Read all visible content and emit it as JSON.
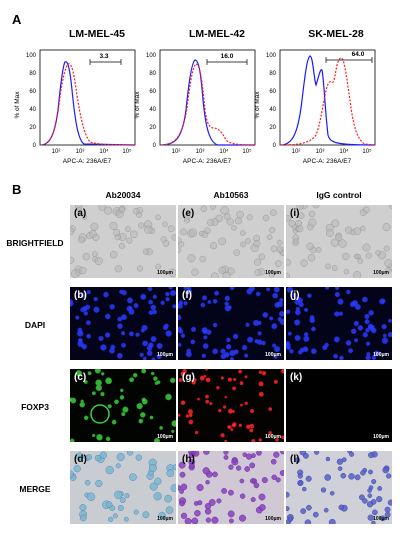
{
  "panel_a": {
    "letter": "A",
    "plots": [
      {
        "title": "LM-MEL-45",
        "gate_value": "3.3"
      },
      {
        "title": "LM-MEL-42",
        "gate_value": "16.0"
      },
      {
        "title": "SK-MEL-28",
        "gate_value": "64.0"
      }
    ],
    "y_label": "% of Max",
    "x_label": "APC-A: 236A/E7",
    "y_ticks": [
      "0",
      "20",
      "40",
      "60",
      "80",
      "100"
    ],
    "x_ticks": [
      "10²",
      "10³",
      "10⁴",
      "10⁵"
    ],
    "series_colors": {
      "blue": "#1a1aff",
      "red": "#ff1a1a"
    }
  },
  "panel_b": {
    "letter": "B",
    "columns": [
      "Ab20034",
      "Ab10563",
      "IgG control"
    ],
    "rows": [
      "BRIGHTFIELD",
      "DAPI",
      "FOXP3",
      "MERGE"
    ],
    "sub_letters": [
      [
        "(a)",
        "(e)",
        "(i)"
      ],
      [
        "(b)",
        "(f)",
        "(j)"
      ],
      [
        "(c)",
        "(g)",
        "(k)"
      ],
      [
        "(d)",
        "(h)",
        "(l)"
      ]
    ],
    "scale_bar": "100μm"
  }
}
